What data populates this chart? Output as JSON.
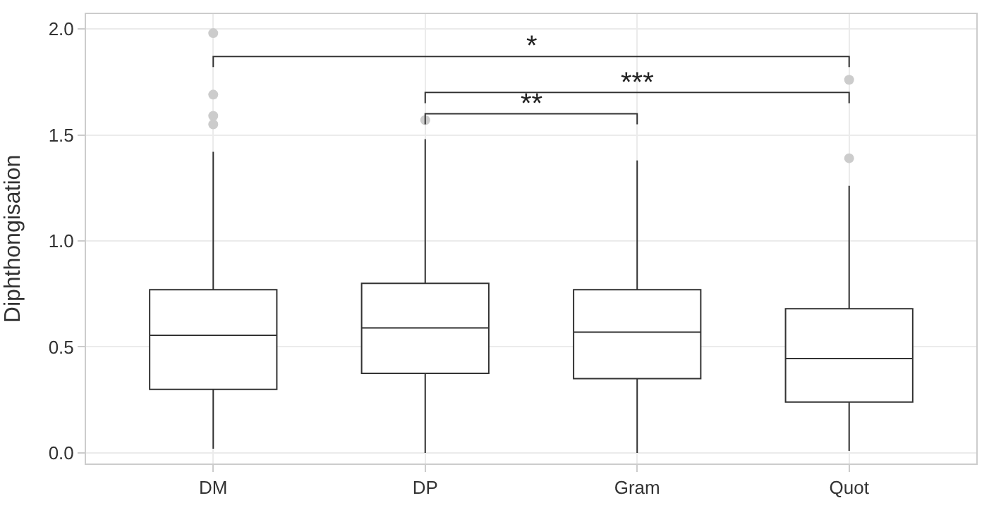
{
  "chart_data": {
    "type": "box",
    "ylabel": "Diphthongisation",
    "categories": [
      "DM",
      "DP",
      "Gram",
      "Quot"
    ],
    "boxes": [
      {
        "low": 0.02,
        "q1": 0.3,
        "median": 0.555,
        "q3": 0.77,
        "high": 1.42,
        "outliers": [
          1.98,
          1.69,
          1.59,
          1.55
        ]
      },
      {
        "low": 0.0,
        "q1": 0.375,
        "median": 0.59,
        "q3": 0.8,
        "high": 1.48,
        "outliers": [
          1.57
        ]
      },
      {
        "low": 0.0,
        "q1": 0.35,
        "median": 0.57,
        "q3": 0.77,
        "high": 1.38
      },
      {
        "low": 0.01,
        "q1": 0.24,
        "median": 0.445,
        "q3": 0.68,
        "high": 1.26,
        "outliers": [
          1.76,
          1.39
        ]
      }
    ],
    "ylim": [
      -0.05,
      2.07
    ],
    "yticks": [
      {
        "value": 0,
        "label": "0.0"
      },
      {
        "value": 0.5,
        "label": "0.5"
      },
      {
        "value": 1,
        "label": "1.0"
      },
      {
        "value": 1.5,
        "label": "1.5"
      },
      {
        "value": 2,
        "label": "2.0"
      }
    ],
    "grid": true,
    "color": "#333333",
    "annotations": [
      "*",
      "***",
      "**"
    ]
  }
}
